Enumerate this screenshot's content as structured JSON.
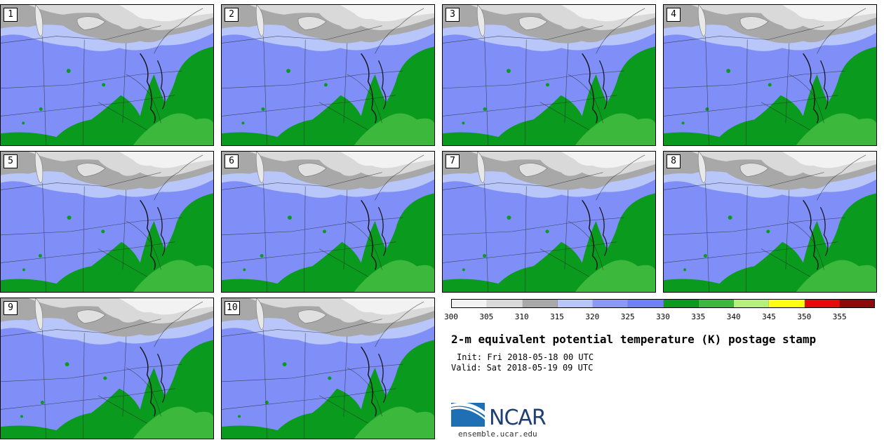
{
  "panels": [
    "1",
    "2",
    "3",
    "4",
    "5",
    "6",
    "7",
    "8",
    "9",
    "10"
  ],
  "colorbar": {
    "ticks": [
      "300",
      "305",
      "310",
      "315",
      "320",
      "325",
      "330",
      "335",
      "340",
      "345",
      "350",
      "355"
    ],
    "colors": [
      "#f2f2f2",
      "#d9d9d9",
      "#a8a8a8",
      "#b8c6fa",
      "#8a98f8",
      "#7080f6",
      "#0a9a1e",
      "#3cb83c",
      "#b4f07a",
      "#ffff14",
      "#e60a0a",
      "#8c0a0a"
    ]
  },
  "title": "2-m equivalent potential temperature (K) postage stamp",
  "init": "Init: Fri 2018-05-18 00 UTC",
  "valid": "Valid: Sat 2018-05-19 09 UTC",
  "logo": {
    "name": "NCAR",
    "colors": [
      "#1f6fb5",
      "#1f3e73"
    ]
  },
  "website": "ensemble.ucar.edu"
}
